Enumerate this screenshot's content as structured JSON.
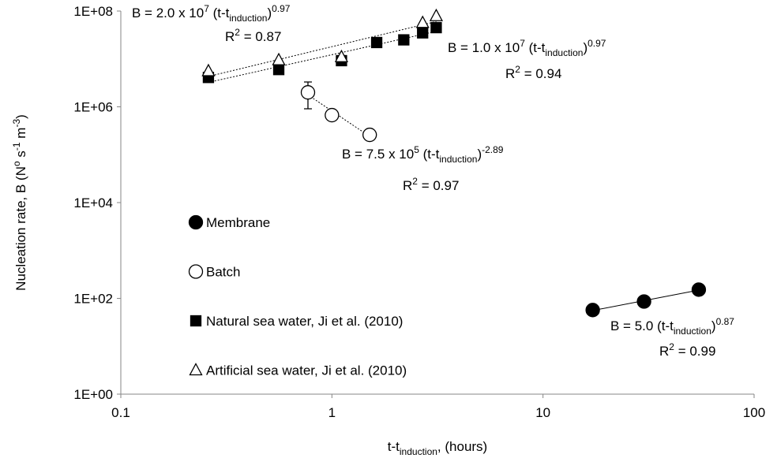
{
  "chart_data": {
    "type": "scatter",
    "xlabel": [
      {
        "text": "t-t"
      },
      {
        "text": "induction",
        "shift": "sub"
      },
      {
        "text": ", (hours)"
      }
    ],
    "ylabel": [
      {
        "text": "Nucleation rate, B (N"
      },
      {
        "text": "o",
        "shift": "sup"
      },
      {
        "text": " s"
      },
      {
        "text": "-1",
        "shift": "sup"
      },
      {
        "text": " m"
      },
      {
        "text": "-3",
        "shift": "sup"
      },
      {
        "text": ")"
      }
    ],
    "log_x": true,
    "log_y": true,
    "xlim": [
      0.1,
      100
    ],
    "xticks": [
      0.1,
      1,
      10,
      100
    ],
    "ylim": [
      1,
      100000000
    ],
    "yticks": [
      {
        "value": 1,
        "label": "1E+00"
      },
      {
        "value": 100,
        "label": "1E+02"
      },
      {
        "value": 10000,
        "label": "1E+04"
      },
      {
        "value": 1000000,
        "label": "1E+06"
      },
      {
        "value": 100000000,
        "label": "1E+08"
      }
    ],
    "series": [
      {
        "name": "Membrane",
        "marker": "circle",
        "filled": true,
        "color": "#000000",
        "trendline": "solid",
        "x": [
          17.2,
          30.1,
          54.7
        ],
        "values": [
          57,
          86,
          152
        ]
      },
      {
        "name": "Batch",
        "marker": "circle",
        "filled": false,
        "color": "#000000",
        "trendline": "dotted",
        "x": [
          0.77,
          1.0,
          1.51
        ],
        "values": [
          2000000,
          670000,
          260000
        ],
        "ylow": [
          910000,
          null,
          null
        ],
        "yhigh": [
          3300000,
          null,
          null
        ]
      },
      {
        "name": "Natural sea water, Ji et al. (2010)",
        "marker": "square",
        "filled": true,
        "color": "#000000",
        "trendline": "dotted",
        "x": [
          0.26,
          0.56,
          1.11,
          1.63,
          2.19,
          2.69,
          3.12
        ],
        "values": [
          4100000,
          6000000,
          9200000,
          22000000,
          25000000,
          35000000,
          45000000
        ]
      },
      {
        "name": "Artificial sea water, Ji et al. (2010)",
        "marker": "triangle",
        "filled": false,
        "color": "#000000",
        "trendline": "dotted",
        "x": [
          0.26,
          0.56,
          1.11,
          2.69,
          3.12
        ],
        "values": [
          5600000,
          9500000,
          11000000,
          57000000,
          79000000
        ]
      }
    ],
    "annotations": [
      {
        "equation": [
          {
            "text": "B = 2.0 x 10"
          },
          {
            "text": "7",
            "shift": "sup"
          },
          {
            "text": " (t-t"
          },
          {
            "text": "induction",
            "shift": "sub"
          },
          {
            "text": ")"
          },
          {
            "text": "0.97",
            "shift": "sup"
          }
        ],
        "r2": [
          {
            "text": "R"
          },
          {
            "text": "2",
            "shift": "sup"
          },
          {
            "text": " = 0.87"
          }
        ]
      },
      {
        "equation": [
          {
            "text": "B = 1.0 x 10"
          },
          {
            "text": "7",
            "shift": "sup"
          },
          {
            "text": " (t-t"
          },
          {
            "text": "induction",
            "shift": "sub"
          },
          {
            "text": ")"
          },
          {
            "text": "0.97",
            "shift": "sup"
          }
        ],
        "r2": [
          {
            "text": "R"
          },
          {
            "text": "2",
            "shift": "sup"
          },
          {
            "text": " = 0.94"
          }
        ]
      },
      {
        "equation": [
          {
            "text": "B = 7.5 x 10"
          },
          {
            "text": "5",
            "shift": "sup"
          },
          {
            "text": " (t-t"
          },
          {
            "text": "induction",
            "shift": "sub"
          },
          {
            "text": ")"
          },
          {
            "text": "-2.89",
            "shift": "sup"
          }
        ],
        "r2": [
          {
            "text": "R"
          },
          {
            "text": "2",
            "shift": "sup"
          },
          {
            "text": " = 0.97"
          }
        ]
      },
      {
        "equation": [
          {
            "text": "B = 5.0 (t-t"
          },
          {
            "text": "induction",
            "shift": "sub"
          },
          {
            "text": ")"
          },
          {
            "text": "0.87",
            "shift": "sup"
          }
        ],
        "r2": [
          {
            "text": "R"
          },
          {
            "text": "2",
            "shift": "sup"
          },
          {
            "text": " = 0.99"
          }
        ]
      }
    ]
  }
}
